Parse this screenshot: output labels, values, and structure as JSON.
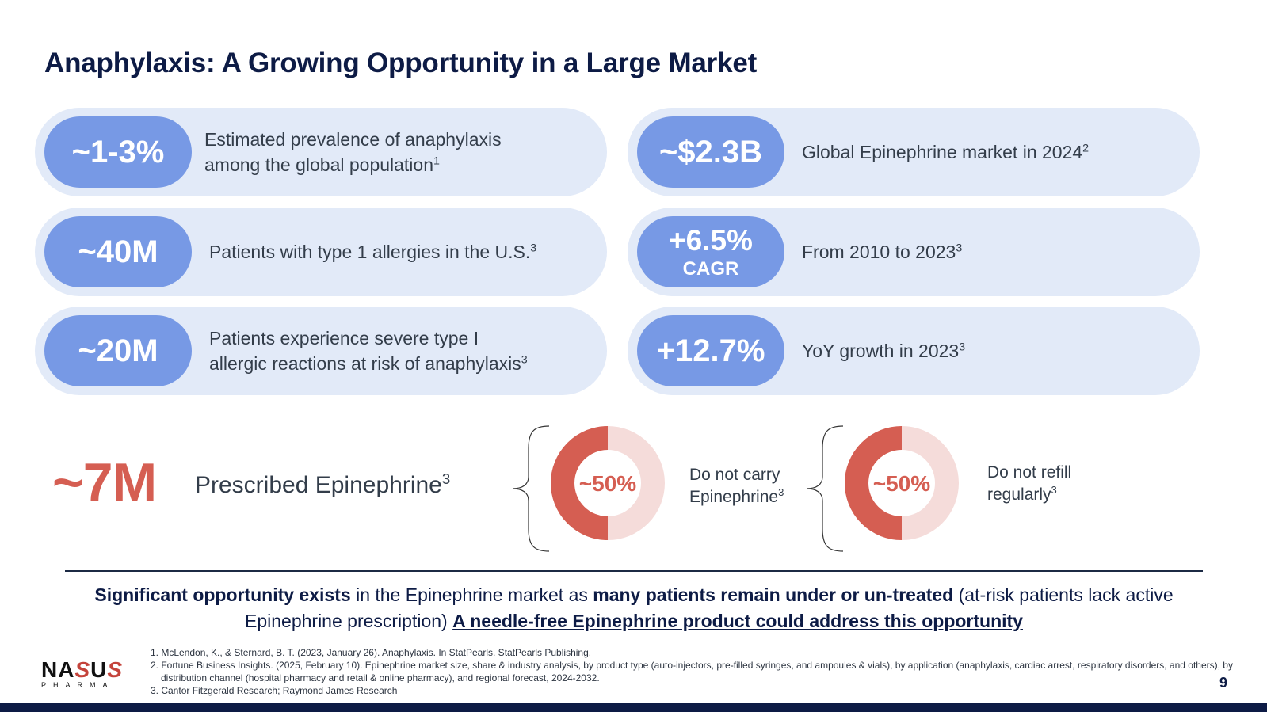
{
  "title": "Anaphylaxis: A Growing Opportunity in a Large Market",
  "stats_left": [
    {
      "value": "~1-3%",
      "text_lines": [
        "Estimated prevalence of anaphylaxis",
        "among the global population"
      ],
      "ref": "1"
    },
    {
      "value": "~40M",
      "text_lines": [
        "Patients with type 1 allergies in the U.S."
      ],
      "ref": "3"
    },
    {
      "value": "~20M",
      "text_lines": [
        "Patients experience severe type I",
        "allergic reactions at risk of anaphylaxis"
      ],
      "ref": "3"
    }
  ],
  "stats_right": [
    {
      "value": "~$2.3B",
      "sub": "",
      "text_lines": [
        "Global Epinephrine market in 2024"
      ],
      "ref": "2"
    },
    {
      "value": "+6.5%",
      "sub": "CAGR",
      "text_lines": [
        "From 2010 to 2023"
      ],
      "ref": "3"
    },
    {
      "value": "+12.7%",
      "sub": "",
      "text_lines": [
        "YoY growth in 2023"
      ],
      "ref": "3"
    }
  ],
  "prescribed": {
    "value": "~7M",
    "label": "Prescribed Epinephrine",
    "ref": "3"
  },
  "donuts": [
    {
      "value_label": "~50%",
      "fraction": 0.5,
      "text_lines": [
        "Do not carry",
        "Epinephrine"
      ],
      "ref": "3"
    },
    {
      "value_label": "~50%",
      "fraction": 0.5,
      "text_lines": [
        "Do not refill",
        "regularly"
      ],
      "ref": "3"
    }
  ],
  "colors": {
    "title": "#0d1b45",
    "card_bg": "#e2eaf8",
    "pill_bg": "#7799e5",
    "accent_red": "#d55e52",
    "donut_light": "#f5dcda",
    "footer_bar": "#0d1b45"
  },
  "summary": {
    "bold1": "Significant opportunity exists",
    "text1": " in the Epinephrine market as ",
    "bold2": "many patients remain under or un-treated",
    "text2": " (at-risk patients lack active Epinephrine prescription)  ",
    "link": "A needle-free Epinephrine product could address this opportunity"
  },
  "logo": {
    "word_a": "NA",
    "word_s1": "S",
    "word_b": "U",
    "word_s2": "S",
    "tagline": "PHARMA"
  },
  "references": [
    "1. McLendon, K., & Sternard, B. T. (2023, January 26). Anaphylaxis. In StatPearls. StatPearls Publishing.",
    "2. Fortune Business Insights. (2025, February 10). Epinephrine market size, share & industry analysis, by product type (auto-injectors, pre-filled syringes, and ampoules & vials), by application (anaphylaxis, cardiac arrest, respiratory disorders, and others), by distribution channel (hospital pharmacy and retail & online pharmacy), and regional forecast, 2024-2032.",
    "3. Cantor Fitzgerald Research; Raymond James Research"
  ],
  "page_number": "9"
}
